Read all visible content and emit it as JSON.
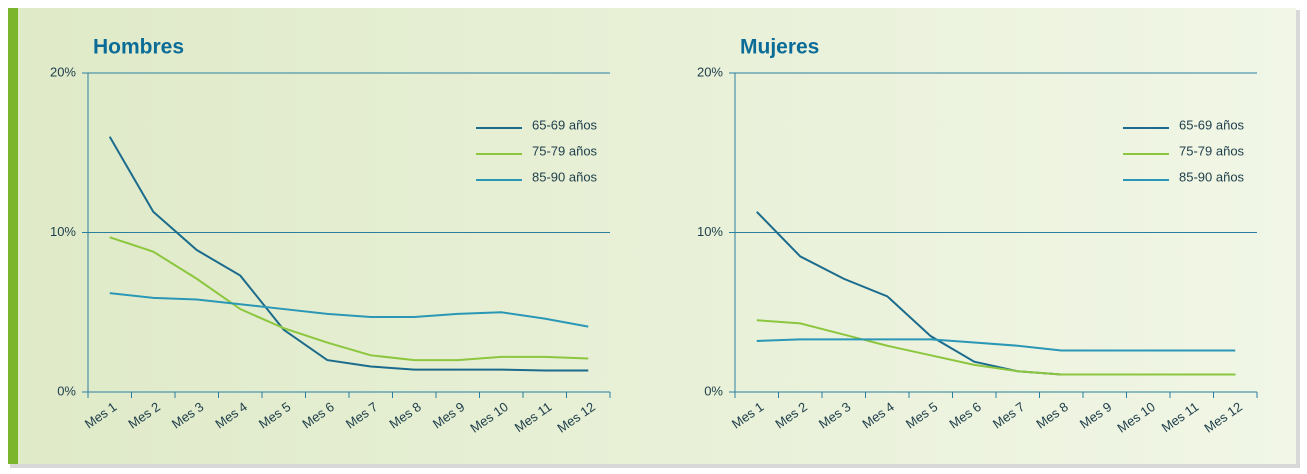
{
  "chart_data": [
    {
      "type": "line",
      "title": "Hombres",
      "categories": [
        "Mes 1",
        "Mes 2",
        "Mes 3",
        "Mes 4",
        "Mes 5",
        "Mes 6",
        "Mes 7",
        "Mes 8",
        "Mes 9",
        "Mes 10",
        "Mes 11",
        "Mes 12"
      ],
      "series": [
        {
          "name": "65-69 años",
          "color": "#1b6b8c",
          "values": [
            16.0,
            11.3,
            8.9,
            7.3,
            3.9,
            2.0,
            1.6,
            1.4,
            1.4,
            1.4,
            1.35,
            1.35
          ]
        },
        {
          "name": "75-79 años",
          "color": "#8cc63f",
          "values": [
            9.7,
            8.8,
            7.1,
            5.2,
            4.0,
            3.1,
            2.3,
            2.0,
            2.0,
            2.2,
            2.2,
            2.1
          ]
        },
        {
          "name": "85-90 años",
          "color": "#2b97b6",
          "values": [
            6.2,
            5.9,
            5.8,
            5.5,
            5.2,
            4.9,
            4.7,
            4.7,
            4.9,
            5.0,
            4.6,
            4.1
          ]
        }
      ],
      "ylim": [
        0,
        20
      ],
      "yticks": [
        {
          "value": 0,
          "label": "0%"
        },
        {
          "value": 10,
          "label": "10%"
        },
        {
          "value": 20,
          "label": "20%"
        }
      ],
      "grid": true,
      "legend": "upper right"
    },
    {
      "type": "line",
      "title": "Mujeres",
      "categories": [
        "Mes 1",
        "Mes 2",
        "Mes 3",
        "Mes 4",
        "Mes 5",
        "Mes 6",
        "Mes 7",
        "Mes 8",
        "Mes 9",
        "Mes 10",
        "Mes 11",
        "Mes 12"
      ],
      "series": [
        {
          "name": "65-69 años",
          "color": "#1b6b8c",
          "values": [
            11.3,
            8.5,
            7.1,
            6.0,
            3.5,
            1.9,
            1.3,
            1.1,
            1.1,
            1.1,
            1.1,
            1.1
          ]
        },
        {
          "name": "75-79 años",
          "color": "#8cc63f",
          "values": [
            4.5,
            4.3,
            3.6,
            2.9,
            2.3,
            1.7,
            1.3,
            1.1,
            1.1,
            1.1,
            1.1,
            1.1
          ]
        },
        {
          "name": "85-90 años",
          "color": "#2b97b6",
          "values": [
            3.2,
            3.3,
            3.3,
            3.3,
            3.3,
            3.1,
            2.9,
            2.6,
            2.6,
            2.6,
            2.6,
            2.6
          ]
        }
      ],
      "ylim": [
        0,
        20
      ],
      "yticks": [
        {
          "value": 0,
          "label": "0%"
        },
        {
          "value": 10,
          "label": "10%"
        },
        {
          "value": 20,
          "label": "20%"
        }
      ],
      "grid": true,
      "legend": "upper right"
    }
  ]
}
